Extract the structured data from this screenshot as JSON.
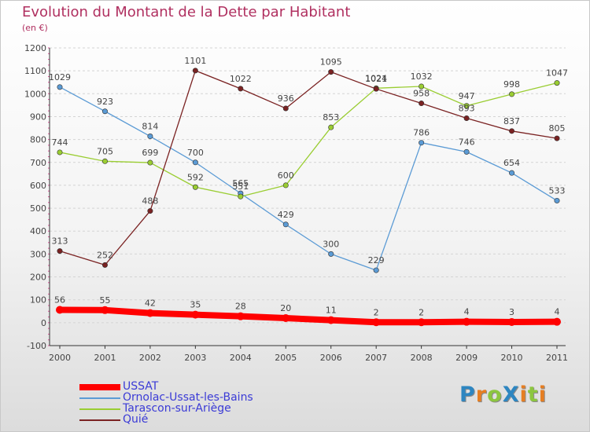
{
  "header": {
    "title": "Evolution du Montant de la Dette par Habitant",
    "subtitle": "(en €)"
  },
  "logo": {
    "text": "ProXiti",
    "letters": [
      {
        "ch": "P",
        "color": "#2e86c1"
      },
      {
        "ch": "r",
        "color": "#e67e22"
      },
      {
        "ch": "o",
        "color": "#8cc63f"
      },
      {
        "ch": "X",
        "color": "#2e86c1"
      },
      {
        "ch": "i",
        "color": "#e67e22"
      },
      {
        "ch": "t",
        "color": "#8cc63f"
      },
      {
        "ch": "i",
        "color": "#e67e22"
      }
    ]
  },
  "chart_data": {
    "type": "line",
    "title": "Evolution du Montant de la Dette par Habitant",
    "subtitle": "(en €)",
    "x": [
      "2000",
      "2001",
      "2002",
      "2003",
      "2004",
      "2005",
      "2006",
      "2007",
      "2008",
      "2009",
      "2010",
      "2011"
    ],
    "ylim": [
      -100,
      1200
    ],
    "yticks": [
      -100,
      0,
      100,
      200,
      300,
      400,
      500,
      600,
      700,
      800,
      900,
      1000,
      1100,
      1200
    ],
    "grid": "horizontal",
    "legend_position": "bottom-left",
    "series": [
      {
        "name": "USSAT",
        "color": "#ff0000",
        "values": [
          56,
          55,
          42,
          35,
          28,
          20,
          11,
          2,
          2,
          4,
          3,
          4
        ]
      },
      {
        "name": "Ornolac-Ussat-les-Bains",
        "color": "#5b9bd5",
        "values": [
          1029,
          923,
          814,
          700,
          565,
          429,
          300,
          229,
          786,
          746,
          654,
          533
        ]
      },
      {
        "name": "Tarascon-sur-Ariège",
        "color": "#9acd32",
        "values": [
          744,
          705,
          699,
          592,
          551,
          600,
          853,
          1024,
          1032,
          947,
          998,
          1047
        ]
      },
      {
        "name": "Quié",
        "color": "#7a2222",
        "values": [
          313,
          252,
          488,
          1101,
          1022,
          936,
          1095,
          1021,
          958,
          893,
          837,
          805
        ]
      }
    ]
  }
}
